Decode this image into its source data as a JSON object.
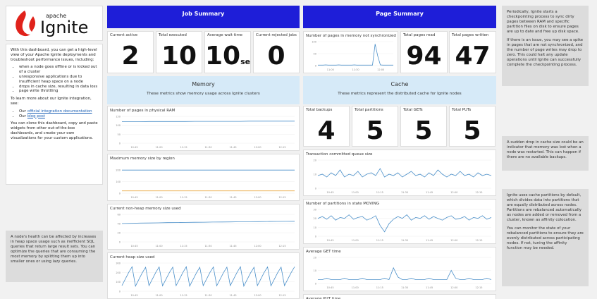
{
  "logo": {
    "prefix": "apache",
    "name": "Ignite"
  },
  "intro": {
    "lead": "With this dashboard, you can get a high-level view of your Apache Ignite deployments and troubleshoot performance issues, including:",
    "items": [
      "when a node goes offline or is kicked out of a cluster",
      "unresponsive applications due to insufficient heap space on a node",
      "drops in cache size, resulting in data loss",
      "page write throttling"
    ],
    "learn": "To learn more about our Ignite integration, see:",
    "links": [
      {
        "before": "Our",
        "link": "official integration documentation"
      },
      {
        "before": "Our",
        "link": "blog post"
      }
    ],
    "outro": "You can clone this dashboard, copy and paste widgets from other out-of-the-box dashboards, and create your own visualizations for your custom applications."
  },
  "left_note": "A node's health can be affected by increases in heap space usage such as inefficient SQL queries that return large result sets. You can optimize the queries that are consuming the most memory by splitting them up into smaller ones or using lazy queries.",
  "job_summary": {
    "title": "Job Summary",
    "stats": [
      {
        "label": "Current active",
        "value": 2
      },
      {
        "label": "Total executed",
        "value": 10
      },
      {
        "label": "Average wait time",
        "value": 10,
        "unit": "sec"
      },
      {
        "label": "Current rejected jobs",
        "value": 0
      }
    ]
  },
  "memory": {
    "title": "Memory",
    "subtitle": "These metrics show memory usage across Ignite clusters",
    "charts": [
      {
        "type": "line",
        "title": "Number of pages in physical RAM",
        "ylim": [
          0,
          150
        ],
        "yticks": [
          0,
          50,
          100,
          150
        ],
        "time_labels": [
          "10:45",
          "11:00",
          "11:15",
          "11:30",
          "11:45",
          "12:00",
          "12:15"
        ],
        "series": [
          {
            "color": "#4a8fc9",
            "values": [
              120,
              120,
              120,
              121,
              121,
              121,
              121,
              121,
              122,
              122,
              122,
              122,
              122,
              122,
              123,
              123,
              123,
              123,
              123,
              123
            ]
          }
        ]
      },
      {
        "type": "line",
        "title": "Maximum memory size by region",
        "ylim": [
          0,
          250
        ],
        "yticks": [
          0,
          100,
          200
        ],
        "time_labels": [
          "10:45",
          "11:00",
          "11:15",
          "11:30",
          "11:45",
          "12:00",
          "12:15"
        ],
        "series": [
          {
            "color": "#4a8fc9",
            "values": [
              200,
              200,
              200,
              200,
              200,
              200,
              200,
              200,
              200,
              200,
              200,
              200,
              200,
              200,
              200,
              200,
              200,
              200,
              200,
              200
            ]
          },
          {
            "color": "#e8a33a",
            "values": [
              20,
              20,
              20,
              20,
              20,
              20,
              20,
              20,
              20,
              20,
              20,
              20,
              20,
              20,
              20,
              20,
              20,
              20,
              20,
              20
            ]
          }
        ]
      },
      {
        "type": "line",
        "title": "Current non-heap memory size used",
        "ylim": [
          0,
          60
        ],
        "yticks": [
          0,
          20,
          40,
          60
        ],
        "time_labels": [
          "10:45",
          "11:00",
          "11:15",
          "11:30",
          "11:45",
          "12:00",
          "12:15"
        ],
        "series": [
          {
            "color": "#4a8fc9",
            "values": [
              40,
              40.5,
              41,
              41.3,
              41.6,
              42,
              42.2,
              42.5,
              42.8,
              43,
              43.2,
              43.4,
              43.6,
              43.8,
              44,
              44.2,
              44.4,
              44.6,
              44.8,
              45
            ]
          }
        ]
      },
      {
        "type": "line",
        "title": "Current heap size used",
        "ylim": [
          0,
          300
        ],
        "yticks": [
          0,
          100,
          200,
          300
        ],
        "time_labels": [
          "10:45",
          "11:00",
          "11:15",
          "11:30",
          "11:45",
          "12:00",
          "12:15"
        ],
        "series": [
          {
            "color": "#4a8fc9",
            "values": [
              60,
              130,
              200,
              260,
              55,
              125,
              195,
              255,
              60,
              130,
              200,
              258,
              58,
              128,
              198,
              256,
              60,
              130,
              200,
              260,
              55,
              125,
              195,
              255,
              60,
              130,
              200,
              258,
              58,
              128,
              198,
              256,
              60,
              130,
              200,
              260,
              55,
              125,
              195,
              255,
              60,
              130,
              200,
              258,
              58,
              128,
              198,
              256,
              60,
              130,
              200,
              260
            ]
          }
        ]
      }
    ]
  },
  "page_summary": {
    "title": "Page Summary",
    "chart": {
      "type": "line",
      "title": "Number of pages in memory not synchronized",
      "ylim": [
        0,
        100
      ],
      "yticks": [
        0,
        50,
        100
      ],
      "time_labels": [
        "11:00",
        "11:30",
        "12:00"
      ],
      "series": [
        {
          "color": "#4a8fc9",
          "values": [
            2,
            2,
            2,
            3,
            2,
            2,
            2,
            2,
            3,
            2,
            2,
            2,
            2,
            2,
            3,
            2,
            2,
            2,
            2,
            2,
            2,
            2,
            90,
            40,
            3,
            2,
            2,
            2,
            2,
            2
          ]
        }
      ]
    },
    "stats": [
      {
        "label": "Total pages read",
        "value": 94
      },
      {
        "label": "Total pages written",
        "value": 47
      }
    ]
  },
  "cache": {
    "title": "Cache",
    "subtitle": "These metrics represent the distributed cache for Ignite nodes",
    "stats": [
      {
        "label": "Total backups",
        "value": 4
      },
      {
        "label": "Total partitions",
        "value": 5
      },
      {
        "label": "Total GETs",
        "value": 5
      },
      {
        "label": "Total PUTs",
        "value": 5
      }
    ],
    "charts": [
      {
        "type": "line",
        "title": "Transaction committed queue size",
        "ylim": [
          0,
          20
        ],
        "yticks": [
          0,
          10,
          20
        ],
        "time_labels": [
          "10:45",
          "11:00",
          "11:15",
          "11:30",
          "11:45",
          "12:00",
          "12:15"
        ],
        "series": [
          {
            "color": "#4a8fc9",
            "values": [
              9,
              10,
              8,
              11,
              9,
              13,
              8,
              10,
              9,
              12,
              8,
              10,
              11,
              9,
              14,
              8,
              10,
              9,
              11,
              8,
              10,
              12,
              9,
              10,
              8,
              11,
              9,
              13,
              10,
              8,
              10,
              9,
              12,
              9,
              10,
              8,
              11,
              9,
              10,
              9
            ]
          }
        ]
      },
      {
        "type": "line",
        "title": "Number of partitions in state MOVING",
        "ylim": [
          0,
          30
        ],
        "yticks": [
          0,
          10,
          20,
          30
        ],
        "time_labels": [
          "10:45",
          "11:00",
          "11:15",
          "11:30",
          "11:45",
          "12:00",
          "12:15"
        ],
        "series": [
          {
            "color": "#4a8fc9",
            "values": [
              20,
              22,
              19,
              23,
              18,
              21,
              20,
              24,
              19,
              21,
              22,
              18,
              20,
              23,
              12,
              5,
              14,
              19,
              22,
              20,
              24,
              18,
              21,
              20,
              23,
              19,
              22,
              20,
              18,
              21,
              23,
              19,
              20,
              22,
              18,
              21,
              20,
              23,
              19,
              21
            ]
          }
        ]
      },
      {
        "type": "line",
        "title": "Average GET time",
        "ylim": [
          0,
          20
        ],
        "yticks": [
          0,
          10,
          20
        ],
        "time_labels": [
          "10:45",
          "11:00",
          "11:15",
          "11:30",
          "11:45",
          "12:00",
          "12:15"
        ],
        "series": [
          {
            "color": "#4a8fc9",
            "values": [
              3,
              3,
              4,
              3,
              3,
              3,
              4,
              3,
              3,
              3,
              4,
              3,
              3,
              3,
              3,
              4,
              3,
              12,
              5,
              3,
              3,
              4,
              3,
              3,
              3,
              4,
              3,
              3,
              3,
              3,
              10,
              4,
              3,
              3,
              4,
              3,
              3,
              3,
              4,
              3
            ]
          }
        ]
      },
      {
        "title": "Average PUT time"
      }
    ]
  },
  "notes": [
    {
      "paragraphs": [
        "Periodically, Ignite starts a checkpointing process to sync dirty pages between RAM and specific partition files on disk to ensure pages are up to date and free up disk space.",
        "If there is an issue, you may see a spike in pages that are not synchronized, and the number of page writes may drop to zero. This could halt any update operations until Ignite can successfully complete the checkpointing process."
      ]
    },
    {
      "paragraphs": [
        "A sudden drop in cache size could be an indicator that memory was lost when a node was restarted. This can happen if there are no available backups."
      ]
    },
    {
      "paragraphs": [
        "Ignite uses cache partitions by default, which divides data into partitions that are equally distributed across nodes. Partitions are rebalanced automatically as nodes are added or removed from a cluster, known as affinity colocation.",
        "You can monitor the state of your rebalanced partitions to ensure they are evenly distributed across participating nodes. If not, tuning the affinity function may be needed."
      ]
    }
  ]
}
